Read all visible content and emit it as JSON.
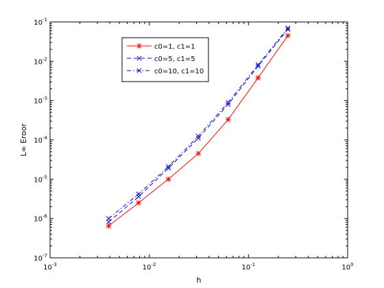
{
  "chart_data": {
    "type": "line",
    "xscale": "log",
    "yscale": "log",
    "xlim": [
      0.001,
      1
    ],
    "ylim": [
      1e-07,
      0.1
    ],
    "x_ticks": [
      0.001,
      0.01,
      0.1,
      1
    ],
    "y_ticks": [
      1e-07,
      1e-06,
      1e-05,
      0.0001,
      0.001,
      0.01,
      0.1
    ],
    "x_tick_labels": [
      {
        "base": "10",
        "exp": "-3"
      },
      {
        "base": "10",
        "exp": "-2"
      },
      {
        "base": "10",
        "exp": "-1"
      },
      {
        "base": "10",
        "exp": "0"
      }
    ],
    "y_tick_labels": [
      {
        "base": "10",
        "exp": "-7"
      },
      {
        "base": "10",
        "exp": "-6"
      },
      {
        "base": "10",
        "exp": "-5"
      },
      {
        "base": "10",
        "exp": "-4"
      },
      {
        "base": "10",
        "exp": "-3"
      },
      {
        "base": "10",
        "exp": "-2"
      },
      {
        "base": "10",
        "exp": "-1"
      }
    ],
    "xlabel": "h",
    "ylabel": "L∞ Eroor",
    "grid": false,
    "legend_position": "top-left",
    "x": [
      0.0039,
      0.0078,
      0.0156,
      0.03125,
      0.0625,
      0.125,
      0.25
    ],
    "series": [
      {
        "name": "c0=1, c1=1",
        "color": "#ff0000",
        "dash": "solid",
        "marker": "star",
        "values": [
          6.5e-07,
          2.5e-06,
          1e-05,
          4.5e-05,
          0.00033,
          0.0038,
          0.045
        ]
      },
      {
        "name": "c0=5, c1=5",
        "color": "#0000bf",
        "dash": "dash",
        "marker": "x",
        "values": [
          8.2e-07,
          3.6e-06,
          1.9e-05,
          0.00011,
          0.0008,
          0.0075,
          0.065
        ]
      },
      {
        "name": "c0=10, c1=10",
        "color": "#0000bf",
        "dash": "dashdot",
        "marker": "x",
        "values": [
          1e-06,
          4.2e-06,
          2.1e-05,
          0.000125,
          0.0009,
          0.0082,
          0.07
        ]
      }
    ]
  }
}
